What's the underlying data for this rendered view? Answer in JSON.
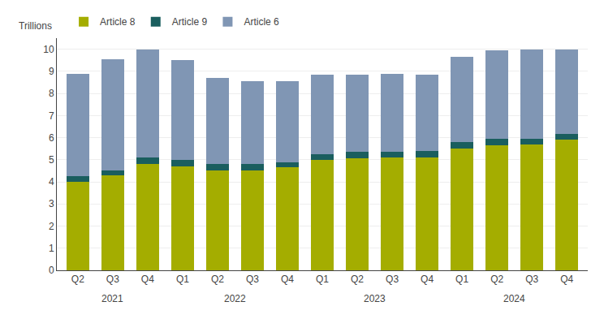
{
  "chart_data": {
    "type": "bar",
    "stacked": true,
    "ylabel": "Trillions",
    "categories": [
      "Q2",
      "Q3",
      "Q4",
      "Q1",
      "Q2",
      "Q3",
      "Q4",
      "Q1",
      "Q2",
      "Q3",
      "Q4",
      "Q1",
      "Q2",
      "Q3",
      "Q4"
    ],
    "series": [
      {
        "name": "Article 8",
        "color": "#a4ad00",
        "values": [
          4.0,
          4.3,
          4.8,
          4.7,
          4.5,
          4.5,
          4.65,
          5.0,
          5.05,
          5.1,
          5.1,
          5.5,
          5.65,
          5.7,
          5.9
        ]
      },
      {
        "name": "Article 9",
        "color": "#1a5e5e",
        "values": [
          0.25,
          0.2,
          0.3,
          0.3,
          0.3,
          0.3,
          0.25,
          0.25,
          0.3,
          0.25,
          0.3,
          0.3,
          0.3,
          0.25,
          0.25
        ]
      },
      {
        "name": "Article 6",
        "color": "#8096b4",
        "values": [
          4.65,
          5.05,
          4.9,
          4.5,
          3.9,
          3.75,
          3.65,
          3.6,
          3.5,
          3.55,
          3.45,
          3.85,
          4.0,
          4.05,
          3.85
        ]
      }
    ],
    "annotations": [
      {
        "text": "2021",
        "x": 1.0
      },
      {
        "text": "2022",
        "x": 4.5
      },
      {
        "text": "2023",
        "x": 8.5
      },
      {
        "text": "2024",
        "x": 12.5
      }
    ],
    "ylim": [
      0,
      10.5
    ],
    "yticks": [
      0,
      1,
      2,
      3,
      4,
      5,
      6,
      7,
      8,
      9,
      10
    ],
    "grid": true,
    "legend": "upper left"
  }
}
